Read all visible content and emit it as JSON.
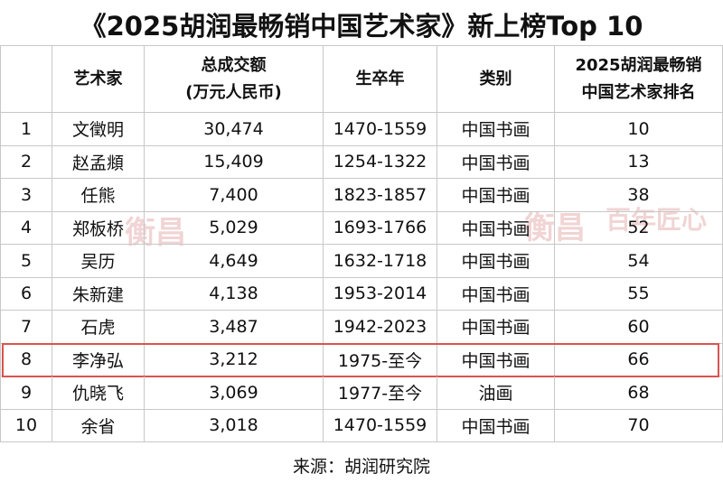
{
  "title": "《2025胡润最畅销中国艺术家》新上榜Top 10",
  "table": {
    "header": [
      [],
      [
        "艺术家"
      ],
      [
        "总成交额",
        "(万元人民币)"
      ],
      [
        "生卒年"
      ],
      [
        "类别"
      ],
      [
        "2025胡润最畅销",
        "中国艺术家排名"
      ]
    ],
    "rows": [
      {
        "cells": [
          "1",
          "文徵明",
          "30,474",
          "1470-1559",
          "中国书画",
          "10"
        ]
      },
      {
        "cells": [
          "2",
          "赵孟頫",
          "15,409",
          "1254-1322",
          "中国书画",
          "13"
        ]
      },
      {
        "cells": [
          "3",
          "任熊",
          "7,400",
          "1823-1857",
          "中国书画",
          "38"
        ]
      },
      {
        "cells": [
          "4",
          "郑板桥",
          "5,029",
          "1693-1766",
          "中国书画",
          "52"
        ]
      },
      {
        "cells": [
          "5",
          "吴历",
          "4,649",
          "1632-1718",
          "中国书画",
          "54"
        ]
      },
      {
        "cells": [
          "6",
          "朱新建",
          "4,138",
          "1953-2014",
          "中国书画",
          "55"
        ]
      },
      {
        "cells": [
          "7",
          "石虎",
          "3,487",
          "1942-2023",
          "中国书画",
          "60"
        ]
      },
      {
        "cells": [
          "8",
          "李净弘",
          "3,212",
          "1975-至今",
          "中国书画",
          "66"
        ],
        "highlighted": true
      },
      {
        "cells": [
          "9",
          "仇晓飞",
          "3,069",
          "1977-至今",
          "油画",
          "68"
        ]
      },
      {
        "cells": [
          "10",
          "余省",
          "3,018",
          "1470-1559",
          "中国书画",
          "70"
        ]
      }
    ]
  },
  "source": "来源：胡润研究院"
}
